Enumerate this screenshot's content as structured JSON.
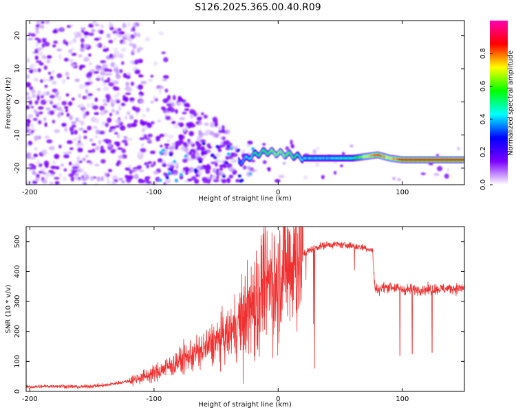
{
  "title": "S126.2025.365.00.40.R09",
  "chart_data": [
    {
      "type": "heatmap",
      "xlabel": "Height of straight line (km)",
      "ylabel": "Frequency (Hz)",
      "xlim": [
        -203,
        150
      ],
      "ylim": [
        -25,
        24.5
      ],
      "x_ticks": [
        -200,
        -100,
        0,
        100
      ],
      "y_ticks": [
        -20,
        -10,
        0,
        10,
        20
      ],
      "colorbar": {
        "label": "Normalized spectral amplitude",
        "range": [
          0,
          1
        ],
        "ticks": [
          "0.0",
          "0.2",
          "0.4",
          "0.6",
          "0.8"
        ],
        "colors": [
          "#ffffff",
          "#7b00ff",
          "#0000ff",
          "#00ffff",
          "#00ff00",
          "#ffff00",
          "#ff0000",
          "#ff00b0"
        ]
      },
      "tone_band": {
        "x": [
          -30,
          -20,
          -10,
          0,
          10,
          20,
          40,
          60,
          80,
          90,
          100,
          150
        ],
        "frequency": [
          -18,
          -16,
          -15,
          -15.5,
          -16,
          -17,
          -17,
          -17,
          -16,
          -17,
          -17.5,
          -17.5
        ],
        "amplitude": [
          0.35,
          0.5,
          0.6,
          0.65,
          0.6,
          0.4,
          0.4,
          0.5,
          0.85,
          0.7,
          0.9,
          0.9
        ]
      }
    },
    {
      "type": "line",
      "xlabel": "Height of straight line (km)",
      "ylabel": "SNR (10 * v/v)",
      "xlim": [
        -203,
        150
      ],
      "ylim": [
        0,
        550
      ],
      "x_ticks": [
        -200,
        -100,
        0,
        100
      ],
      "y_ticks": [
        0,
        100,
        200,
        300,
        400,
        500
      ],
      "color": "#f03030",
      "series": [
        {
          "x": [
            -200,
            -180,
            -160,
            -140,
            -120,
            -100,
            -80,
            -60,
            -40,
            -30,
            -20,
            -10,
            0,
            10,
            20,
            30,
            40,
            50,
            60,
            70,
            76,
            78,
            90,
            100,
            120,
            150
          ],
          "values": [
            15,
            18,
            15,
            20,
            35,
            60,
            100,
            140,
            190,
            240,
            300,
            370,
            390,
            440,
            460,
            480,
            490,
            490,
            485,
            480,
            470,
            340,
            350,
            340,
            340,
            345
          ]
        }
      ]
    }
  ]
}
